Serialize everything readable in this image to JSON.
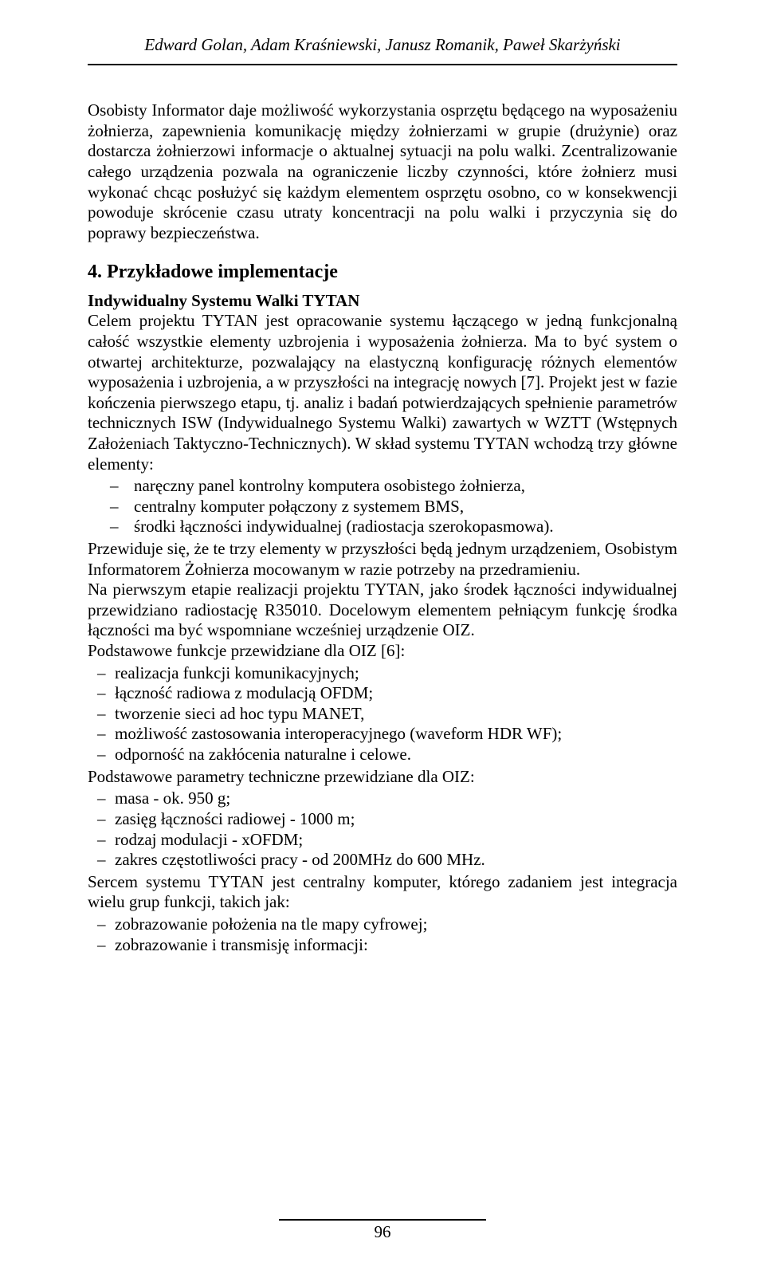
{
  "header_authors": "Edward Golan, Adam Kraśniewski, Janusz Romanik, Paweł Skarżyński",
  "intro_p1": "Osobisty Informator daje możliwość wykorzystania osprzętu będącego na wyposażeniu żołnierza, zapewnienia komunikację między żołnierzami w grupie (drużynie) oraz dostarcza żołnierzowi informacje o aktualnej sytuacji na polu walki. Zcentralizowanie całego urządzenia pozwala na ograniczenie liczby czynności, które żołnierz musi wykonać chcąc posłużyć się każdym elementem osprzętu osobno, co w konsekwencji powoduje skrócenie czasu utraty koncentracji na polu walki i przyczynia się do poprawy bezpieczeństwa.",
  "section_title": "4. Przykładowe implementacje",
  "subhead": "Indywidualny Systemu Walki TYTAN",
  "main_p1": "Celem projektu TYTAN jest opracowanie systemu łączącego w jedną funkcjonalną całość wszystkie elementy uzbrojenia i wyposażenia żołnierza. Ma to być system o otwartej architekturze, pozwalający na elastyczną konfigurację różnych elementów wyposażenia i uzbrojenia, a w przyszłości na integrację nowych [7]. Projekt jest w fazie kończenia pierwszego etapu, tj. analiz i badań potwierdzających spełnienie parametrów technicznych ISW (Indywidualnego Systemu Walki) zawartych w WZTT (Wstępnych Założeniach Taktyczno-Technicznych). W skład systemu TYTAN wchodzą trzy główne elementy:",
  "list1": [
    "naręczny panel kontrolny komputera osobistego żołnierza,",
    "centralny komputer połączony z systemem BMS,",
    "środki łączności indywidualnej (radiostacja szerokopasmowa)."
  ],
  "main_p2": "Przewiduje się, że te trzy elementy w przyszłości będą jednym urządzeniem, Osobistym Informatorem Żołnierza mocowanym w razie potrzeby na przedramieniu.",
  "main_p3": "Na pierwszym etapie realizacji projektu TYTAN, jako środek łączności indywidualnej przewidziano radiostację R35010. Docelowym elementem pełniącym funkcję środka łączności ma być wspomniane wcześniej urządzenie OIZ.",
  "main_p4": "Podstawowe funkcje przewidziane dla OIZ [6]:",
  "list2": [
    "realizacja funkcji komunikacyjnych;",
    "łączność radiowa z modulacją OFDM;",
    "tworzenie sieci ad hoc typu MANET,",
    "możliwość zastosowania interoperacyjnego (waveform HDR WF);",
    "odporność na zakłócenia naturalne i celowe."
  ],
  "main_p5": "Podstawowe parametry techniczne przewidziane dla OIZ:",
  "list3": [
    "masa - ok. 950 g;",
    "zasięg łączności radiowej - 1000 m;",
    "rodzaj modulacji - xOFDM;",
    "zakres częstotliwości pracy - od 200MHz do 600 MHz."
  ],
  "main_p6": "Sercem systemu TYTAN jest centralny komputer, którego zadaniem jest integracja wielu grup funkcji, takich jak:",
  "list4": [
    "zobrazowanie położenia na tle mapy cyfrowej;",
    "zobrazowanie i transmisję informacji:"
  ],
  "page_number": "96"
}
